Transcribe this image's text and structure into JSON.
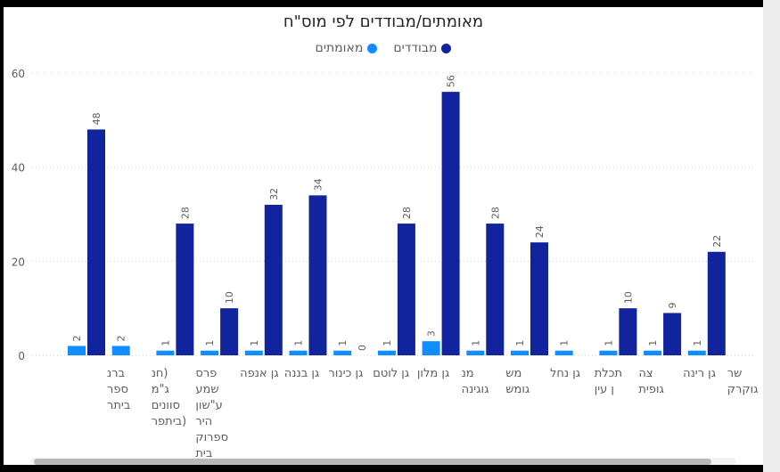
{
  "chart_data": {
    "type": "bar",
    "title": "מאומתים/מבודדים לפי מוס\"ח",
    "categories": [
      [
        "ברנ",
        "ספר",
        "ביתר"
      ],
      [
        "(חנ",
        "ג\"מ",
        "סוונים",
        "(ביתפר"
      ],
      [
        "פרס",
        "שמע",
        "ע\"שון",
        "היר",
        "ספרוק",
        "בית"
      ],
      [
        "גן אנפה"
      ],
      [
        "גן בננה"
      ],
      [
        "גן כינור"
      ],
      [
        "גן לוטם"
      ],
      [
        "גן מלון"
      ],
      [
        "מנ",
        "גוגינה"
      ],
      [
        "מש",
        "גומש"
      ],
      [
        "גן נחל"
      ],
      [
        "תכלת",
        "ן עין"
      ],
      [
        "צה",
        "גופית"
      ],
      [
        "גן רינה"
      ],
      [
        "שר",
        "גוקרק"
      ]
    ],
    "series": [
      {
        "name": "מאומתים",
        "color": "#118DFF",
        "values": [
          2,
          2,
          1,
          1,
          1,
          1,
          1,
          1,
          3,
          1,
          1,
          1,
          1,
          1,
          1
        ]
      },
      {
        "name": "מבודדים",
        "color": "#12239E",
        "values": [
          48,
          null,
          28,
          10,
          32,
          34,
          0,
          28,
          56,
          28,
          24,
          null,
          10,
          9,
          22
        ]
      }
    ],
    "yticks": [
      0,
      20,
      40,
      60
    ],
    "ylim": [
      0,
      60
    ],
    "grid": true,
    "legend_position": "top-center"
  }
}
